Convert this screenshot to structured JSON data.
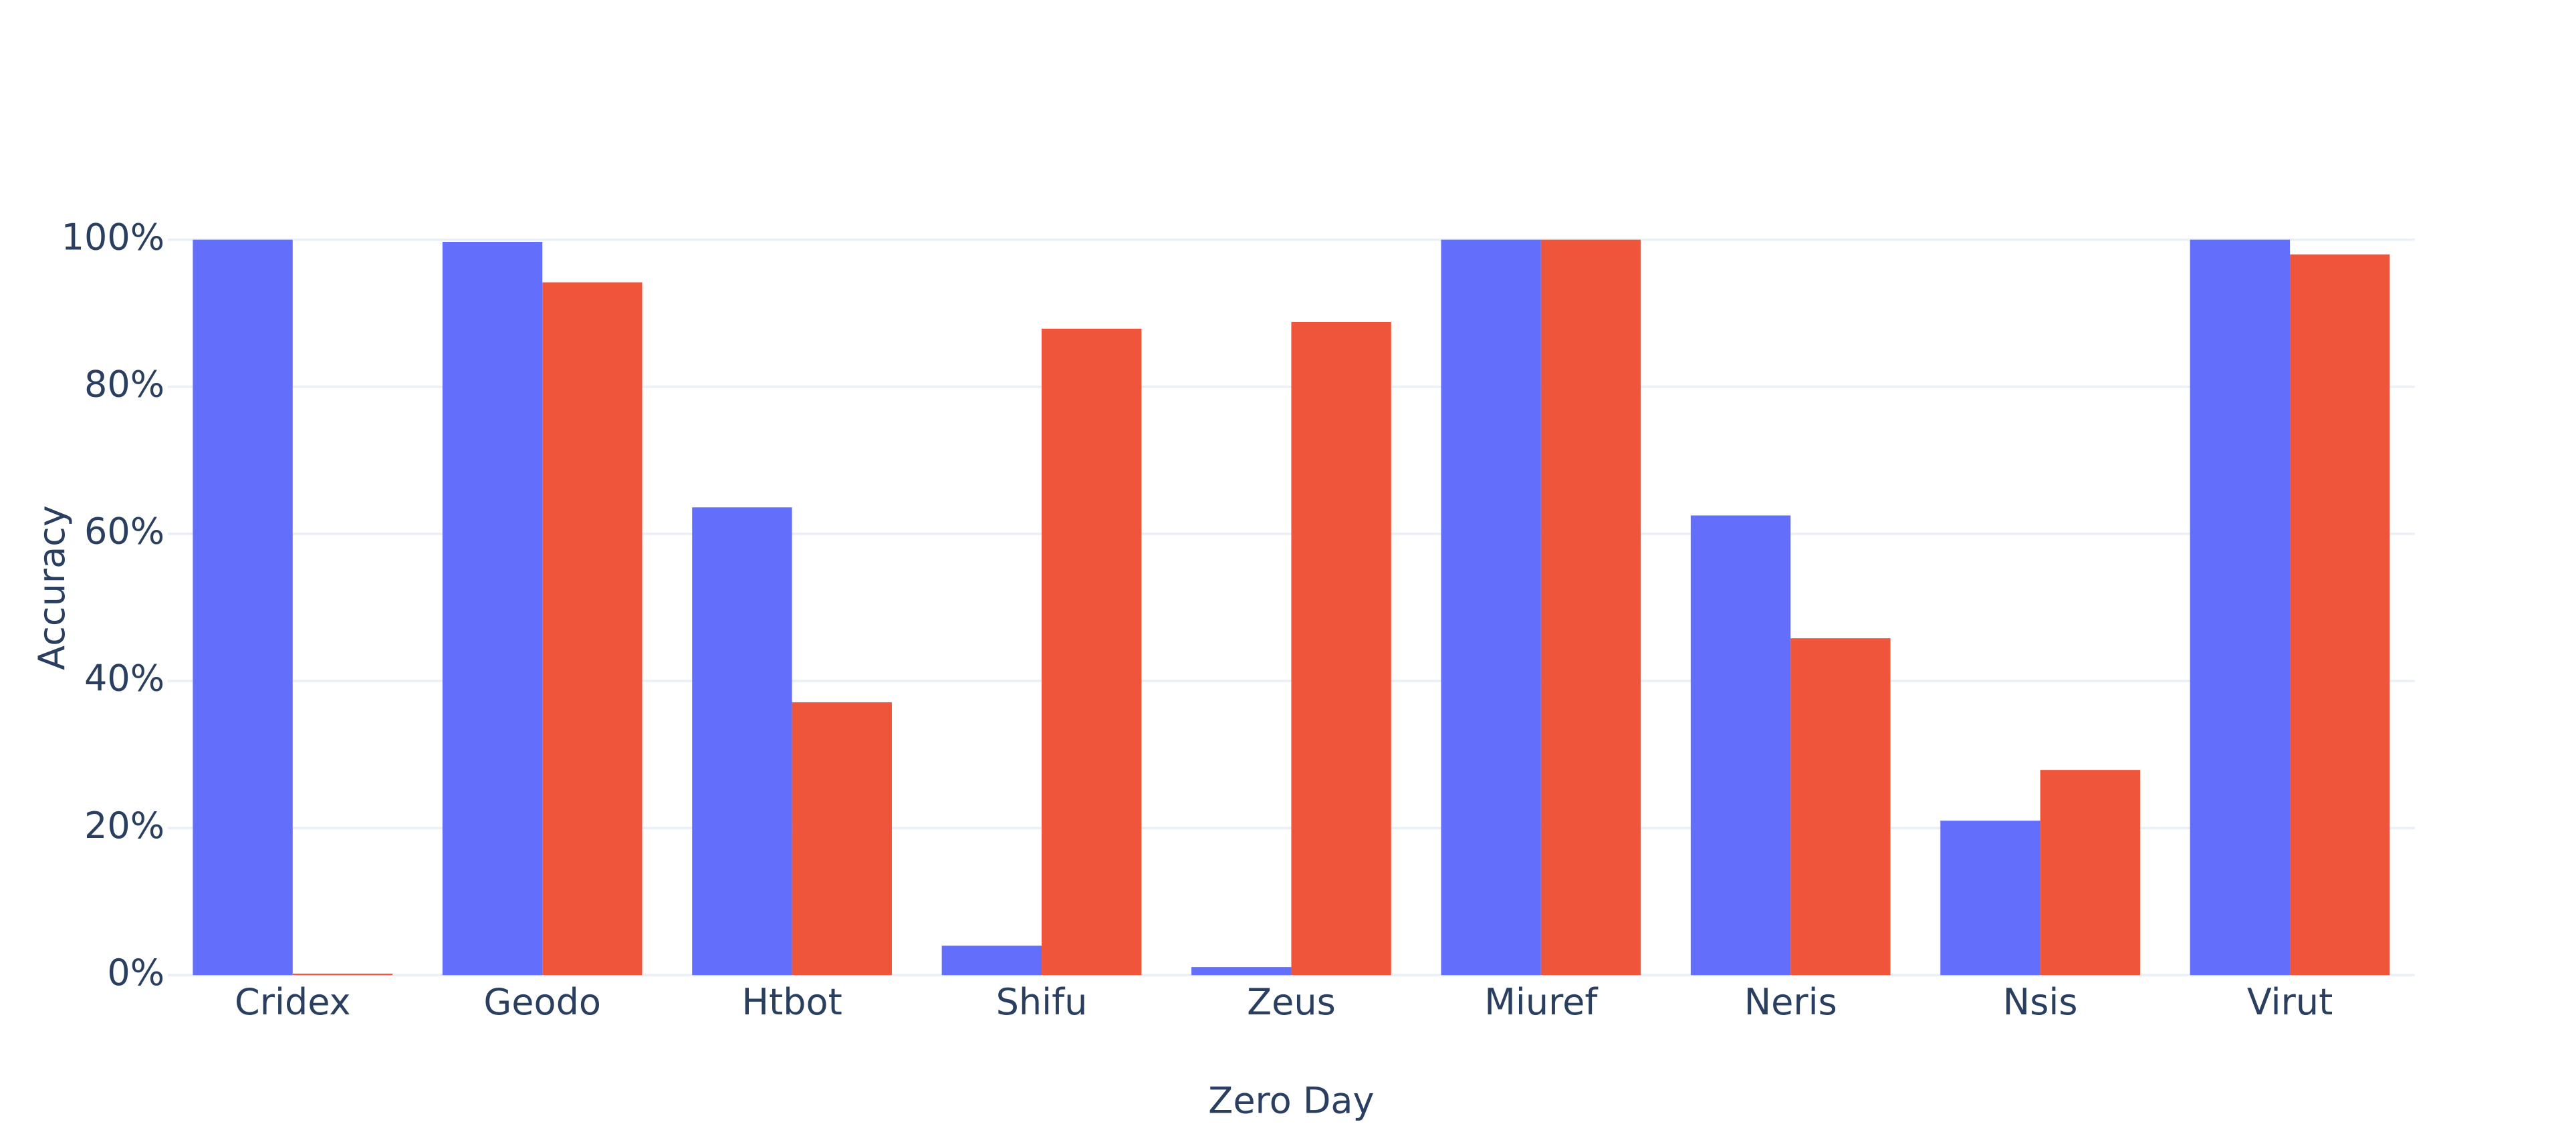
{
  "chart_data": {
    "type": "bar",
    "x_label": "Zero Day",
    "y_label": "Accuracy",
    "categories": [
      "Cridex",
      "Geodo",
      "Htbot",
      "Shifu",
      "Zeus",
      "Miuref",
      "Neris",
      "Nsis",
      "Virut"
    ],
    "series": [
      {
        "color": "#636efa",
        "values": [
          100,
          99.7,
          63.6,
          4.0,
          1.1,
          100,
          62.5,
          21.0,
          100
        ]
      },
      {
        "color": "#ef553b",
        "values": [
          0.2,
          94.2,
          37.1,
          87.9,
          88.8,
          100,
          45.8,
          27.9,
          98.0
        ]
      }
    ],
    "ylim": [
      0,
      100
    ],
    "yticks": [
      {
        "value": 0,
        "label": "0%"
      },
      {
        "value": 20,
        "label": "20%"
      },
      {
        "value": 40,
        "label": "40%"
      },
      {
        "value": 60,
        "label": "60%"
      },
      {
        "value": 80,
        "label": "80%"
      },
      {
        "value": 100,
        "label": "100%"
      }
    ],
    "grid": true
  }
}
